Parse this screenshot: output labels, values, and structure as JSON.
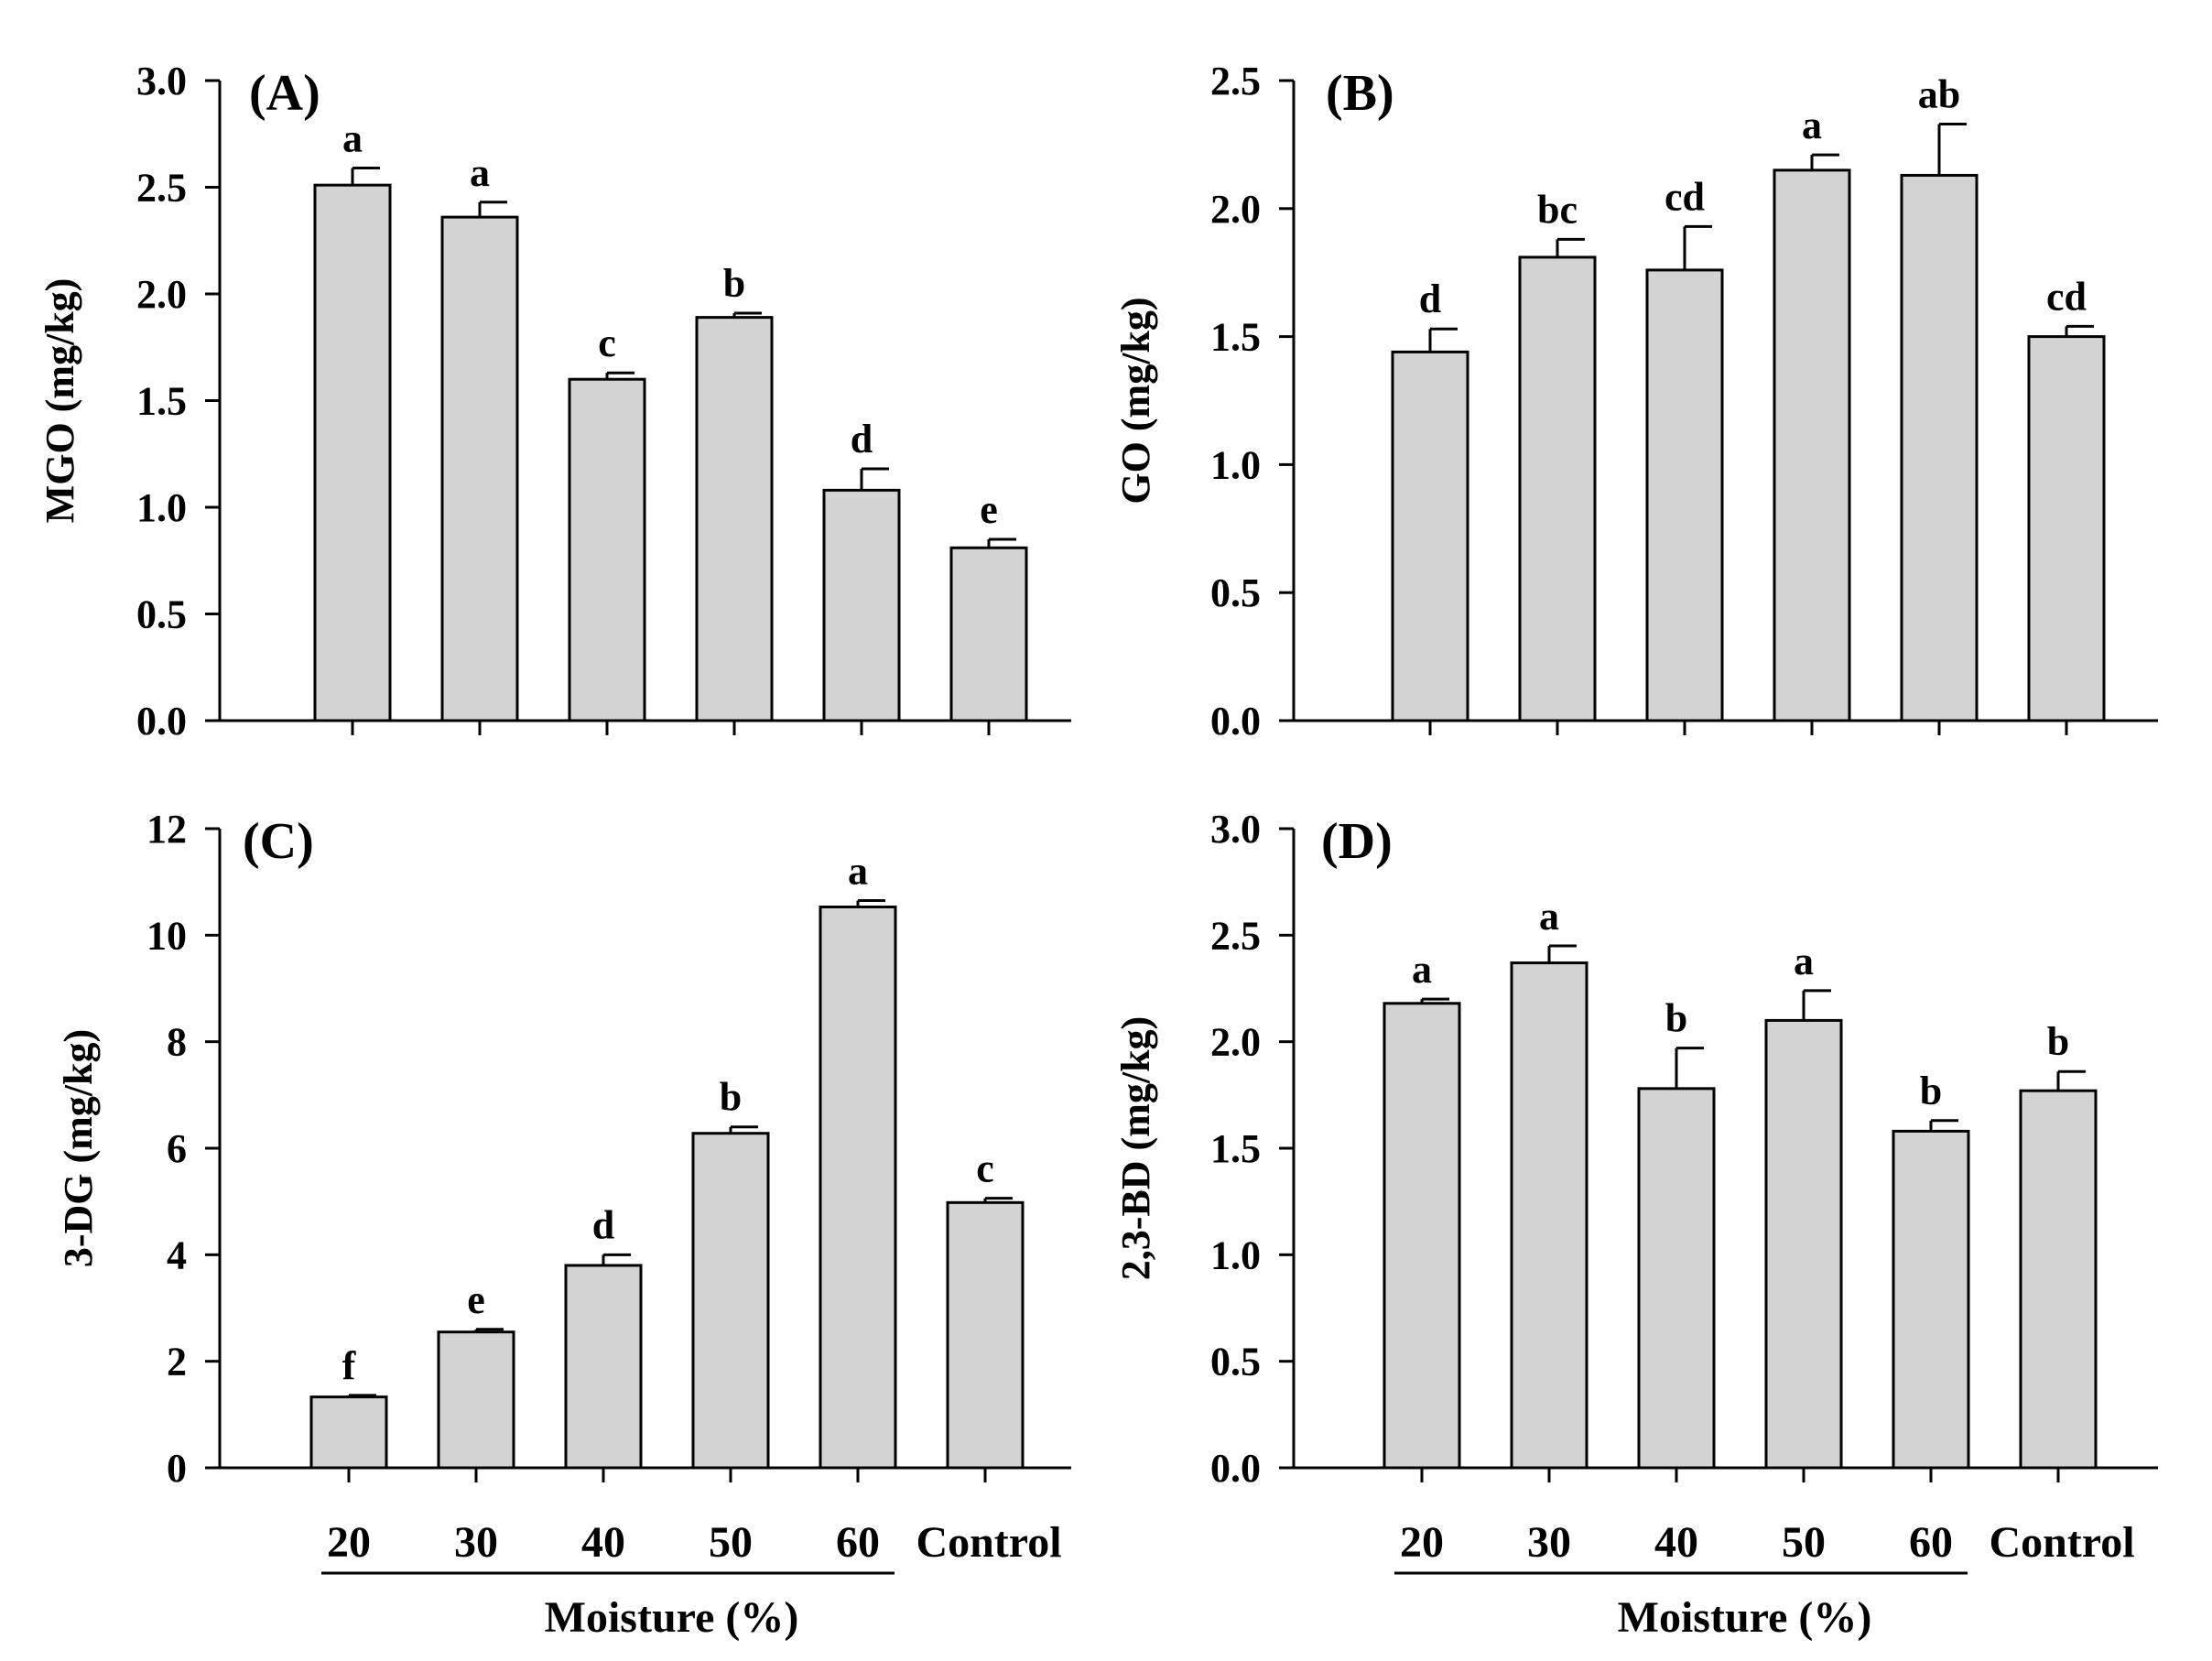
{
  "figure": {
    "group_title": "Moisture (%)",
    "categories": [
      "20",
      "30",
      "40",
      "50",
      "60",
      "Control"
    ],
    "bar_color": "#d3d3d3",
    "line_color": "#000000"
  },
  "chart_data": [
    {
      "type": "bar",
      "panel": "(A)",
      "ylabel": "MGO (mg/kg)",
      "ylim": [
        0,
        3.0
      ],
      "yticks": [
        "0.0",
        "0.5",
        "1.0",
        "1.5",
        "2.0",
        "2.5",
        "3.0"
      ],
      "categories": [
        "20",
        "30",
        "40",
        "50",
        "60",
        "Control"
      ],
      "values": [
        2.51,
        2.36,
        1.6,
        1.89,
        1.08,
        0.81
      ],
      "errors": [
        0.08,
        0.07,
        0.03,
        0.02,
        0.1,
        0.04
      ],
      "letters": [
        "a",
        "a",
        "c",
        "b",
        "d",
        "e"
      ]
    },
    {
      "type": "bar",
      "panel": "(B)",
      "ylabel": "GO (mg/kg)",
      "ylim": [
        0,
        2.5
      ],
      "yticks": [
        "0.0",
        "0.5",
        "1.0",
        "1.5",
        "2.0",
        "2.5"
      ],
      "categories": [
        "20",
        "30",
        "40",
        "50",
        "60",
        "Control"
      ],
      "values": [
        1.44,
        1.81,
        1.76,
        2.15,
        2.13,
        1.5
      ],
      "errors": [
        0.09,
        0.07,
        0.17,
        0.06,
        0.2,
        0.04
      ],
      "letters": [
        "d",
        "bc",
        "cd",
        "a",
        "ab",
        "cd"
      ]
    },
    {
      "type": "bar",
      "panel": "(C)",
      "ylabel": "3-DG (mg/kg)",
      "ylim": [
        0,
        12
      ],
      "yticks": [
        "0",
        "2",
        "4",
        "6",
        "8",
        "10",
        "12"
      ],
      "categories": [
        "20",
        "30",
        "40",
        "50",
        "60",
        "Control"
      ],
      "values": [
        1.33,
        2.55,
        3.8,
        6.28,
        10.53,
        4.98
      ],
      "errors": [
        0.03,
        0.05,
        0.2,
        0.12,
        0.12,
        0.08
      ],
      "letters": [
        "f",
        "e",
        "d",
        "b",
        "a",
        "c"
      ]
    },
    {
      "type": "bar",
      "panel": "(D)",
      "ylabel": "2,3-BD (mg/kg)",
      "ylim": [
        0,
        3.0
      ],
      "yticks": [
        "0.0",
        "0.5",
        "1.0",
        "1.5",
        "2.0",
        "2.5",
        "3.0"
      ],
      "categories": [
        "20",
        "30",
        "40",
        "50",
        "60",
        "Control"
      ],
      "values": [
        2.18,
        2.37,
        1.78,
        2.1,
        1.58,
        1.77
      ],
      "errors": [
        0.02,
        0.08,
        0.19,
        0.14,
        0.05,
        0.09
      ],
      "letters": [
        "a",
        "a",
        "b",
        "a",
        "b",
        "b"
      ]
    }
  ]
}
